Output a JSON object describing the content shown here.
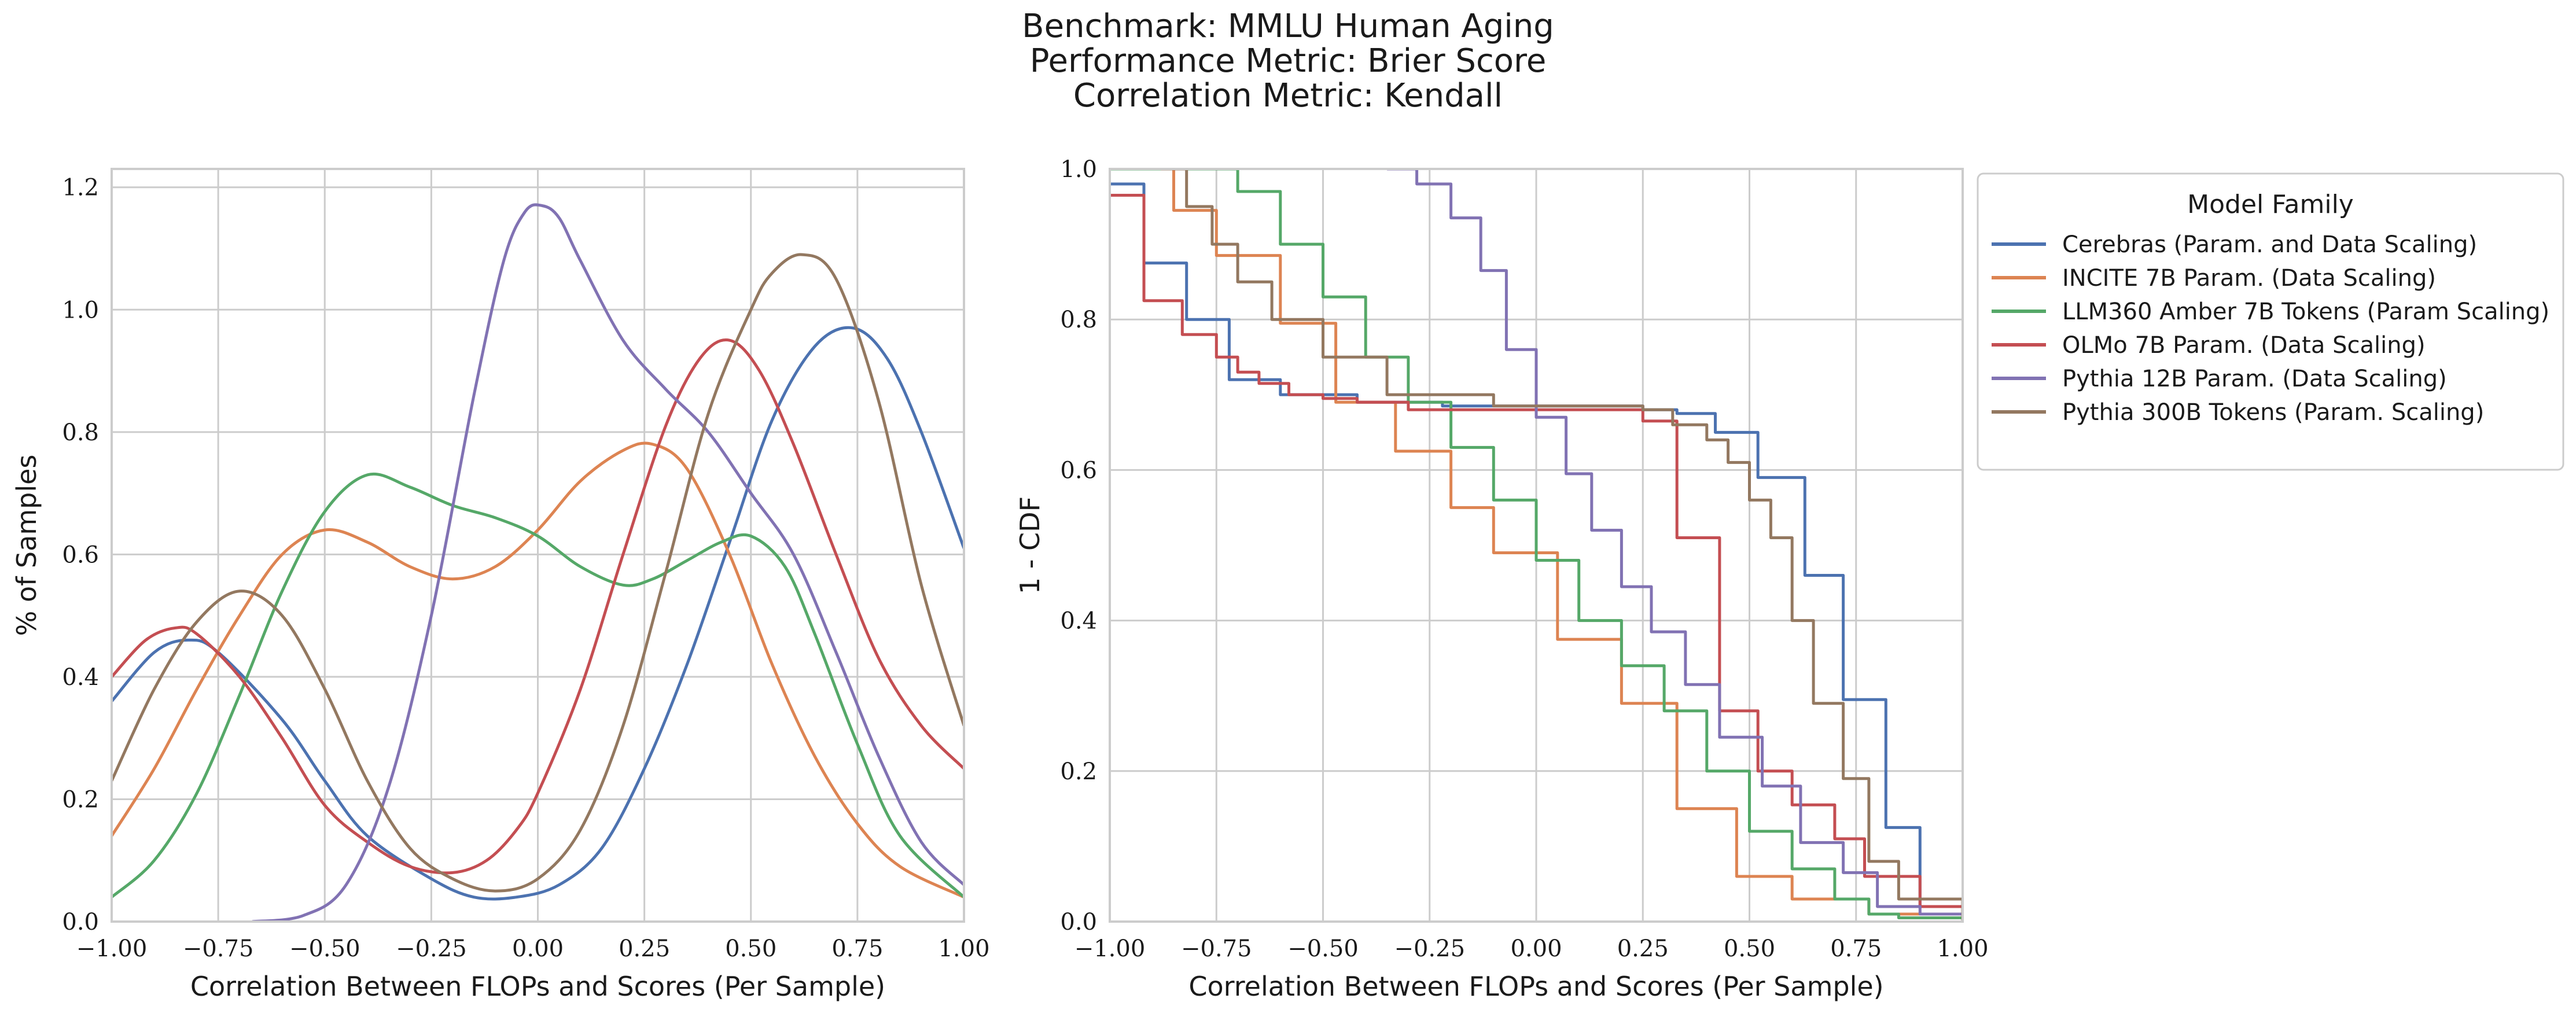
{
  "title_lines": [
    "Benchmark: MMLU Human Aging",
    "Performance Metric: Brier Score",
    "Correlation Metric: Kendall"
  ],
  "colors": {
    "Cerebras": "#4c72b0",
    "INCITE": "#dd8452",
    "LLM360": "#55a868",
    "OLMo": "#c44e52",
    "Pythia12B": "#8172b3",
    "Pythia300B": "#937860",
    "grid": "#cccccc",
    "axes": "#cccccc"
  },
  "chart_data": [
    {
      "type": "line",
      "subtype": "kde",
      "xlabel": "Correlation Between FLOPs and Scores (Per Sample)",
      "ylabel": "% of Samples",
      "xlim": [
        -1.0,
        1.0
      ],
      "ylim": [
        0.0,
        1.23
      ],
      "xticks": [
        "−1.00",
        "−0.75",
        "−0.50",
        "−0.25",
        "0.00",
        "0.25",
        "0.50",
        "0.75",
        "1.00"
      ],
      "yticks": [
        "0.0",
        "0.2",
        "0.4",
        "0.6",
        "0.8",
        "1.0",
        "1.2"
      ],
      "grid": true,
      "series": [
        {
          "name": "Cerebras (Param. and Data Scaling)",
          "color_key": "Cerebras",
          "x": [
            -1.0,
            -0.9,
            -0.82,
            -0.75,
            -0.6,
            -0.5,
            -0.4,
            -0.25,
            -0.15,
            -0.05,
            0.05,
            0.15,
            0.25,
            0.35,
            0.45,
            0.55,
            0.65,
            0.74,
            0.82,
            0.9,
            1.0
          ],
          "y": [
            0.36,
            0.44,
            0.46,
            0.44,
            0.33,
            0.23,
            0.14,
            0.07,
            0.04,
            0.04,
            0.06,
            0.12,
            0.25,
            0.42,
            0.62,
            0.82,
            0.94,
            0.97,
            0.92,
            0.8,
            0.61
          ]
        },
        {
          "name": "INCITE 7B Param. (Data Scaling)",
          "color_key": "INCITE",
          "x": [
            -1.0,
            -0.9,
            -0.8,
            -0.7,
            -0.6,
            -0.5,
            -0.4,
            -0.3,
            -0.2,
            -0.1,
            0.0,
            0.1,
            0.2,
            0.27,
            0.35,
            0.45,
            0.55,
            0.65,
            0.75,
            0.85,
            1.0
          ],
          "y": [
            0.14,
            0.25,
            0.38,
            0.5,
            0.6,
            0.64,
            0.62,
            0.58,
            0.56,
            0.58,
            0.64,
            0.72,
            0.77,
            0.78,
            0.74,
            0.6,
            0.42,
            0.27,
            0.16,
            0.09,
            0.04
          ]
        },
        {
          "name": "LLM360 Amber 7B Tokens (Param Scaling)",
          "color_key": "LLM360",
          "x": [
            -1.0,
            -0.9,
            -0.8,
            -0.7,
            -0.6,
            -0.5,
            -0.4,
            -0.3,
            -0.2,
            -0.1,
            0.0,
            0.1,
            0.2,
            0.27,
            0.35,
            0.43,
            0.5,
            0.58,
            0.65,
            0.75,
            0.85,
            1.0
          ],
          "y": [
            0.04,
            0.1,
            0.21,
            0.37,
            0.54,
            0.67,
            0.73,
            0.71,
            0.68,
            0.66,
            0.63,
            0.58,
            0.55,
            0.56,
            0.59,
            0.62,
            0.63,
            0.58,
            0.47,
            0.29,
            0.14,
            0.04
          ]
        },
        {
          "name": "OLMo 7B Param. (Data Scaling)",
          "color_key": "OLMo",
          "x": [
            -1.0,
            -0.92,
            -0.85,
            -0.8,
            -0.7,
            -0.6,
            -0.5,
            -0.4,
            -0.3,
            -0.2,
            -0.12,
            -0.05,
            0.0,
            0.1,
            0.2,
            0.3,
            0.38,
            0.45,
            0.52,
            0.6,
            0.7,
            0.8,
            0.9,
            1.0
          ],
          "y": [
            0.4,
            0.46,
            0.48,
            0.47,
            0.4,
            0.3,
            0.19,
            0.13,
            0.09,
            0.08,
            0.1,
            0.15,
            0.21,
            0.38,
            0.6,
            0.81,
            0.92,
            0.95,
            0.9,
            0.78,
            0.6,
            0.43,
            0.32,
            0.25
          ]
        },
        {
          "name": "Pythia 12B Param. (Data Scaling)",
          "color_key": "Pythia12B",
          "x": [
            -0.67,
            -0.55,
            -0.45,
            -0.35,
            -0.25,
            -0.15,
            -0.08,
            -0.03,
            0.01,
            0.05,
            0.1,
            0.2,
            0.3,
            0.4,
            0.5,
            0.6,
            0.7,
            0.8,
            0.9,
            1.0
          ],
          "y": [
            0.0,
            0.01,
            0.06,
            0.22,
            0.5,
            0.86,
            1.08,
            1.16,
            1.17,
            1.15,
            1.08,
            0.95,
            0.87,
            0.8,
            0.7,
            0.6,
            0.44,
            0.27,
            0.13,
            0.06
          ]
        },
        {
          "name": "Pythia 300B Tokens (Param. Scaling)",
          "color_key": "Pythia300B",
          "x": [
            -1.0,
            -0.9,
            -0.8,
            -0.7,
            -0.6,
            -0.5,
            -0.4,
            -0.3,
            -0.2,
            -0.1,
            0.0,
            0.1,
            0.2,
            0.3,
            0.4,
            0.5,
            0.55,
            0.62,
            0.7,
            0.8,
            0.9,
            1.0
          ],
          "y": [
            0.23,
            0.38,
            0.49,
            0.54,
            0.5,
            0.38,
            0.23,
            0.12,
            0.07,
            0.05,
            0.07,
            0.15,
            0.32,
            0.57,
            0.83,
            1.0,
            1.06,
            1.09,
            1.05,
            0.85,
            0.55,
            0.32
          ]
        }
      ]
    },
    {
      "type": "line",
      "subtype": "step",
      "xlabel": "Correlation Between FLOPs and Scores (Per Sample)",
      "ylabel": "1 - CDF",
      "xlim": [
        -1.0,
        1.0
      ],
      "ylim": [
        0.0,
        1.0
      ],
      "xticks": [
        "−1.00",
        "−0.75",
        "−0.50",
        "−0.25",
        "0.00",
        "0.25",
        "0.50",
        "0.75",
        "1.00"
      ],
      "yticks": [
        "0.0",
        "0.2",
        "0.4",
        "0.6",
        "0.8",
        "1.0"
      ],
      "grid": true,
      "legend": {
        "title": "Model Family",
        "placement": "outside upper right"
      },
      "series": [
        {
          "name": "Cerebras (Param. and Data Scaling)",
          "color_key": "Cerebras",
          "x": [
            -1.0,
            -0.92,
            -0.82,
            -0.72,
            -0.6,
            -0.42,
            -0.22,
            0.0,
            0.1,
            0.25,
            0.33,
            0.42,
            0.52,
            0.63,
            0.72,
            0.82,
            0.9,
            1.0
          ],
          "y": [
            0.98,
            0.875,
            0.8,
            0.72,
            0.7,
            0.69,
            0.685,
            0.685,
            0.685,
            0.68,
            0.675,
            0.65,
            0.59,
            0.46,
            0.295,
            0.125,
            0.02,
            0.0
          ]
        },
        {
          "name": "INCITE 7B Param. (Data Scaling)",
          "color_key": "INCITE",
          "x": [
            -0.9,
            -0.85,
            -0.75,
            -0.6,
            -0.47,
            -0.33,
            -0.2,
            -0.1,
            0.05,
            0.2,
            0.33,
            0.47,
            0.6,
            0.78,
            1.0
          ],
          "y": [
            1.0,
            0.945,
            0.885,
            0.795,
            0.69,
            0.625,
            0.55,
            0.49,
            0.375,
            0.29,
            0.15,
            0.06,
            0.03,
            0.01,
            0.0
          ]
        },
        {
          "name": "LLM360 Amber 7B Tokens (Param Scaling)",
          "color_key": "LLM360",
          "x": [
            -1.0,
            -0.85,
            -0.7,
            -0.6,
            -0.5,
            -0.4,
            -0.3,
            -0.2,
            -0.1,
            0.0,
            0.1,
            0.2,
            0.3,
            0.4,
            0.5,
            0.6,
            0.7,
            0.78,
            0.85,
            1.0
          ],
          "y": [
            1.0,
            1.0,
            0.97,
            0.9,
            0.83,
            0.75,
            0.69,
            0.63,
            0.56,
            0.48,
            0.4,
            0.34,
            0.28,
            0.2,
            0.12,
            0.07,
            0.03,
            0.01,
            0.005,
            0.0
          ]
        },
        {
          "name": "OLMo 7B Param. (Data Scaling)",
          "color_key": "OLMo",
          "x": [
            -1.0,
            -0.92,
            -0.83,
            -0.75,
            -0.7,
            -0.65,
            -0.58,
            -0.5,
            -0.42,
            -0.3,
            0.0,
            0.25,
            0.33,
            0.43,
            0.52,
            0.6,
            0.7,
            0.77,
            0.9,
            1.0
          ],
          "y": [
            0.965,
            0.825,
            0.78,
            0.75,
            0.73,
            0.715,
            0.7,
            0.695,
            0.69,
            0.68,
            0.68,
            0.665,
            0.51,
            0.28,
            0.2,
            0.155,
            0.11,
            0.06,
            0.02,
            0.0
          ]
        },
        {
          "name": "Pythia 12B Param. (Data Scaling)",
          "color_key": "Pythia12B",
          "x": [
            -0.35,
            -0.28,
            -0.2,
            -0.13,
            -0.07,
            0.0,
            0.07,
            0.13,
            0.2,
            0.27,
            0.35,
            0.43,
            0.53,
            0.62,
            0.72,
            0.8,
            0.9,
            1.0
          ],
          "y": [
            1.0,
            0.98,
            0.935,
            0.865,
            0.76,
            0.67,
            0.595,
            0.52,
            0.445,
            0.385,
            0.315,
            0.245,
            0.18,
            0.105,
            0.065,
            0.02,
            0.01,
            0.0
          ]
        },
        {
          "name": "Pythia 300B Tokens (Param. Scaling)",
          "color_key": "Pythia300B",
          "x": [
            -0.88,
            -0.82,
            -0.76,
            -0.7,
            -0.62,
            -0.5,
            -0.35,
            -0.1,
            0.25,
            0.32,
            0.4,
            0.45,
            0.5,
            0.55,
            0.6,
            0.65,
            0.72,
            0.78,
            0.85,
            1.0
          ],
          "y": [
            1.0,
            0.95,
            0.9,
            0.85,
            0.8,
            0.75,
            0.7,
            0.685,
            0.68,
            0.66,
            0.64,
            0.61,
            0.56,
            0.51,
            0.4,
            0.29,
            0.19,
            0.08,
            0.03,
            0.0
          ]
        }
      ]
    }
  ]
}
